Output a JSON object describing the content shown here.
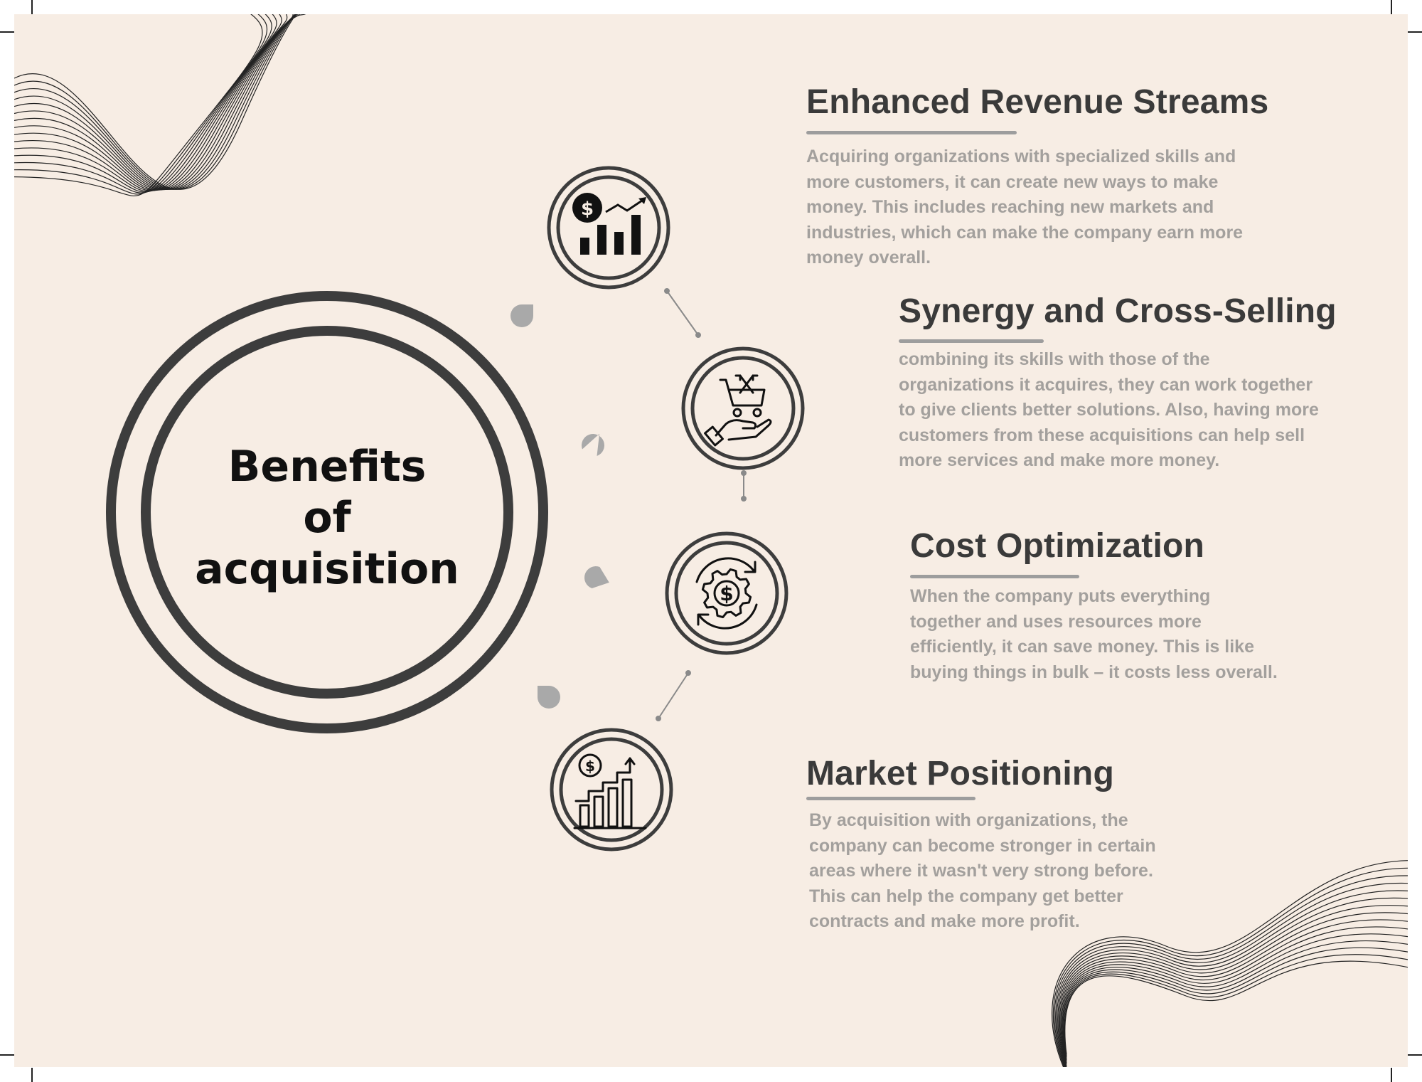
{
  "main": {
    "title_lines": [
      "Benefits",
      "of",
      "acquisition"
    ]
  },
  "sections": [
    {
      "title": "Enhanced Revenue Streams",
      "body": "Acquiring organizations with specialized skills and more customers, it can create new ways to make money. This includes reaching new markets and industries, which can make the company earn more money overall.",
      "icon": "revenue-chart-icon"
    },
    {
      "title": "Synergy and Cross-Selling",
      "body": "combining its skills with those of the organizations it acquires, they can work together to give clients better solutions. Also, having more customers from these acquisitions can help sell more services and make more money.",
      "icon": "cart-hand-icon"
    },
    {
      "title": "Cost Optimization",
      "body": "When the company puts everything together and uses resources more efficiently, it can save money. This is like buying things in bulk – it costs less overall.",
      "icon": "gear-dollar-cycle-icon"
    },
    {
      "title": "Market Positioning",
      "body": "By acquisition with organizations, the company can become stronger in certain areas where it wasn't very strong before. This can help the company get better contracts and make more profit.",
      "icon": "growth-chart-icon"
    }
  ],
  "colors": {
    "background": "#f7ede4",
    "ring": "#3d3d3d",
    "heading": "#3a3a3a",
    "body_text": "#a3a09d",
    "accent_gray": "#9d9d9d"
  }
}
